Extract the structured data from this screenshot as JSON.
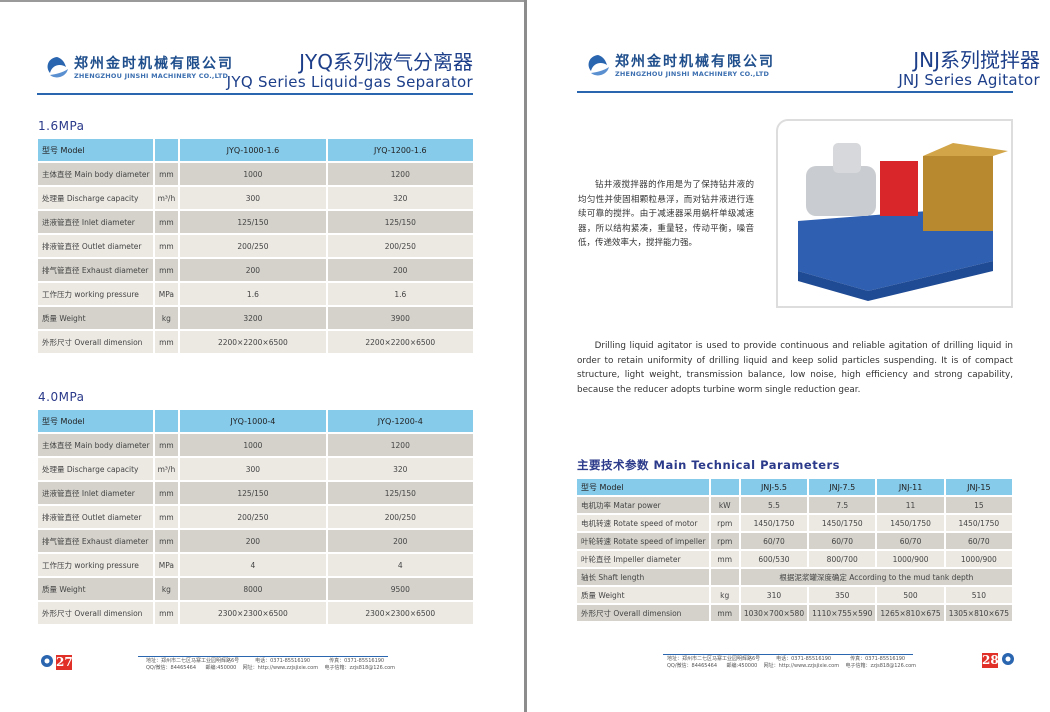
{
  "logo": {
    "cn": "郑州金时机械有限公司",
    "en": "ZHENGZHOU JINSHI MACHINERY CO.,LTD"
  },
  "left": {
    "title_cn": "JYQ系列液气分离器",
    "title_en": "JYQ Series Liquid-gas Separator",
    "tables": [
      {
        "section": "1.6MPa",
        "header": [
          "型号 Model",
          "",
          "JYQ-1000-1.6",
          "JYQ-1200-1.6"
        ],
        "rows": [
          [
            "主体直径 Main body diameter",
            "mm",
            "1000",
            "1200"
          ],
          [
            "处理量 Discharge capacity",
            "m³/h",
            "300",
            "320"
          ],
          [
            "进液管直径 Inlet diameter",
            "mm",
            "125/150",
            "125/150"
          ],
          [
            "排液管直径 Outlet diameter",
            "mm",
            "200/250",
            "200/250"
          ],
          [
            "排气管直径 Exhaust diameter",
            "mm",
            "200",
            "200"
          ],
          [
            "工作压力 working pressure",
            "MPa",
            "1.6",
            "1.6"
          ],
          [
            "质量 Weight",
            "kg",
            "3200",
            "3900"
          ],
          [
            "外形尺寸 Overall dimension",
            "mm",
            "2200×2200×6500",
            "2200×2200×6500"
          ]
        ]
      },
      {
        "section": "4.0MPa",
        "header": [
          "型号 Model",
          "",
          "JYQ-1000-4",
          "JYQ-1200-4"
        ],
        "rows": [
          [
            "主体直径 Main body diameter",
            "mm",
            "1000",
            "1200"
          ],
          [
            "处理量 Discharge capacity",
            "m³/h",
            "300",
            "320"
          ],
          [
            "进液管直径 Inlet diameter",
            "mm",
            "125/150",
            "125/150"
          ],
          [
            "排液管直径 Outlet diameter",
            "mm",
            "200/250",
            "200/250"
          ],
          [
            "排气管直径 Exhaust diameter",
            "mm",
            "200",
            "200"
          ],
          [
            "工作压力 working pressure",
            "MPa",
            "4",
            "4"
          ],
          [
            "质量 Weight",
            "kg",
            "8000",
            "9500"
          ],
          [
            "外形尺寸 Overall dimension",
            "mm",
            "2300×2300×6500",
            "2300×2300×6500"
          ]
        ]
      }
    ],
    "page_number": "27"
  },
  "right": {
    "title_cn": "JNJ系列搅拌器",
    "title_en": "JNJ Series Agitator",
    "desc_cn": "钻井液搅拌器的作用是为了保持钻井液的均匀性并使固相颗粒悬浮，而对钻井液进行连续可靠的搅拌。由于减速器采用蜗杆单级减速器，所以结构紧凑，重量轻，传动平衡，噪音低，传递效率大，搅拌能力强。",
    "desc_en": "Drilling liquid agitator is used to provide continuous and reliable agitation of drilling liquid in order to retain uniformity of drilling liquid and keep solid particles suspending. It is of compact structure, light weight, transmission balance, low noise, high efficiency and strong capability, because the reducer adopts turbine worm single reduction gear.",
    "params_title": "主要技术参数 Main Technical Parameters",
    "table": {
      "header": [
        "型号 Model",
        "",
        "JNJ-5.5",
        "JNJ-7.5",
        "JNJ-11",
        "JNJ-15"
      ],
      "rows": [
        [
          "电机功率 Matar power",
          "kW",
          "5.5",
          "7.5",
          "11",
          "15"
        ],
        [
          "电机转速 Rotate speed of motor",
          "rpm",
          "1450/1750",
          "1450/1750",
          "1450/1750",
          "1450/1750"
        ],
        [
          "叶轮转速 Rotate speed of impeller",
          "rpm",
          "60/70",
          "60/70",
          "60/70",
          "60/70"
        ],
        [
          "叶轮直径 Impeller diameter",
          "mm",
          "600/530",
          "800/700",
          "1000/900",
          "1000/900"
        ],
        [
          "轴长 Shaft length",
          "",
          "根据泥浆罐深度确定 According to the mud tank depth"
        ],
        [
          "质量 Weight",
          "kg",
          "310",
          "350",
          "500",
          "510"
        ],
        [
          "外形尺寸  Overall dimension",
          "mm",
          "1030×700×580",
          "1110×755×590",
          "1265×810×675",
          "1305×810×675"
        ]
      ]
    },
    "page_number": "28"
  },
  "footer": {
    "line1": "地址：郑州市二七区马寨工业园明辉路6号          电话：0371-85516190            传真：0371-85516190",
    "line2": "QQ/微信：84465464      邮编:450000    网址：http://www.zzjsjixie.com    电子信箱：zzjs818@126.com"
  },
  "colors": {
    "accent": "#2a65b0",
    "header_blue": "#87cbea",
    "page_badge": "#e03028"
  }
}
